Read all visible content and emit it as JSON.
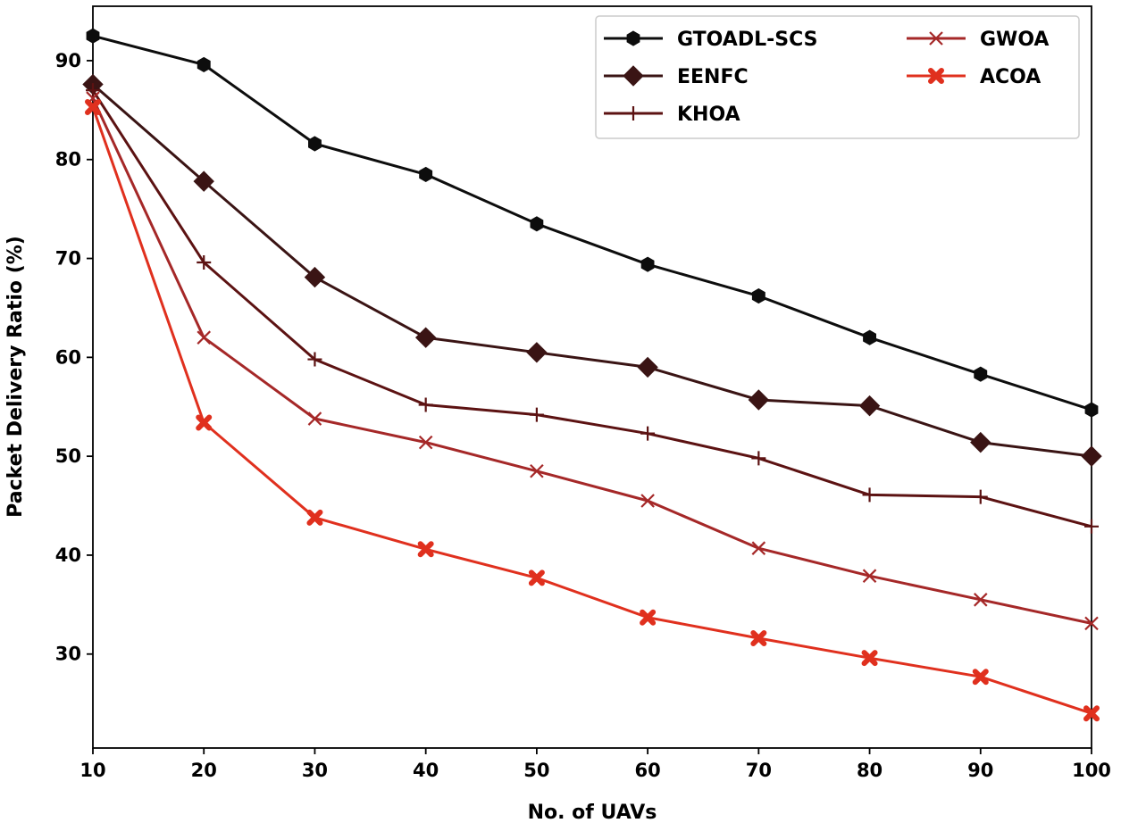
{
  "chart_data": {
    "type": "line",
    "title": "",
    "xlabel": "No. of UAVs",
    "ylabel": "Packet Delivery Ratio (%)",
    "x": [
      10,
      20,
      30,
      40,
      50,
      60,
      70,
      80,
      90,
      100
    ],
    "xlim": [
      10,
      100
    ],
    "ylim": [
      20.5,
      95.5
    ],
    "xticks": [
      "10",
      "20",
      "30",
      "40",
      "50",
      "60",
      "70",
      "80",
      "90",
      "100"
    ],
    "yticks": [
      "30",
      "40",
      "50",
      "60",
      "70",
      "80",
      "90"
    ],
    "grid": false,
    "legend_position": "top-right",
    "series": [
      {
        "name": "GTOADL-SCS",
        "marker": "hexagon",
        "color": "#0d0d0d",
        "values": [
          92.5,
          89.6,
          81.6,
          78.5,
          73.5,
          69.4,
          66.2,
          62.0,
          58.3,
          54.7
        ]
      },
      {
        "name": "EENFC",
        "marker": "diamond",
        "color": "#3a1414",
        "values": [
          87.6,
          77.8,
          68.1,
          62.0,
          60.5,
          59.0,
          55.7,
          55.1,
          51.4,
          50.0
        ]
      },
      {
        "name": "KHOA",
        "marker": "plus",
        "color": "#5c1212",
        "values": [
          87.0,
          69.6,
          59.8,
          55.2,
          54.2,
          52.3,
          49.8,
          46.1,
          45.9,
          42.9
        ]
      },
      {
        "name": "GWOA",
        "marker": "x",
        "color": "#a52828",
        "values": [
          86.2,
          62.0,
          53.8,
          51.4,
          48.5,
          45.5,
          40.7,
          37.9,
          35.5,
          33.1
        ]
      },
      {
        "name": "ACOA",
        "marker": "X",
        "color": "#e0301e",
        "values": [
          85.3,
          53.4,
          43.8,
          40.6,
          37.7,
          33.7,
          31.6,
          29.6,
          27.7,
          24.0
        ]
      }
    ]
  }
}
